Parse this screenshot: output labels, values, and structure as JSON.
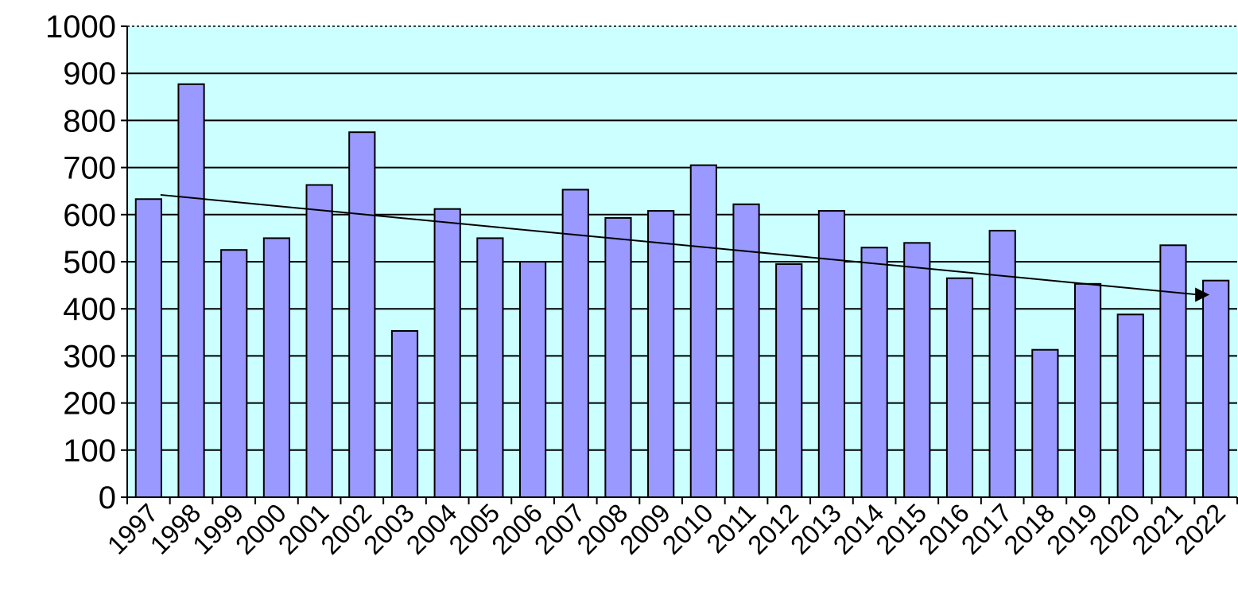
{
  "chart_data": {
    "type": "bar",
    "title": "",
    "xlabel": "",
    "ylabel": "",
    "categories": [
      "1997",
      "1998",
      "1999",
      "2000",
      "2001",
      "2002",
      "2003",
      "2004",
      "2005",
      "2006",
      "2007",
      "2008",
      "2009",
      "2010",
      "2011",
      "2012",
      "2013",
      "2014",
      "2015",
      "2016",
      "2017",
      "2018",
      "2019",
      "2020",
      "2021",
      "2022"
    ],
    "values": [
      633,
      877,
      525,
      550,
      663,
      775,
      353,
      612,
      550,
      500,
      653,
      593,
      608,
      705,
      622,
      495,
      608,
      530,
      540,
      465,
      566,
      313,
      453,
      388,
      535,
      460
    ],
    "ylim": [
      0,
      1000
    ],
    "yticks": [
      0,
      100,
      200,
      300,
      400,
      500,
      600,
      700,
      800,
      900,
      1000
    ],
    "grid": true,
    "legend": "none",
    "trendline": {
      "type": "linear",
      "from": {
        "x": "1997",
        "y": 642
      },
      "to": {
        "x": "2022",
        "y": 430
      },
      "arrow_end": true
    },
    "colors": {
      "bar": "#9999ff",
      "bar_stroke": "#000000",
      "plot_background": "#ccffff",
      "gridline": "#000000",
      "trendline": "#000000"
    }
  }
}
